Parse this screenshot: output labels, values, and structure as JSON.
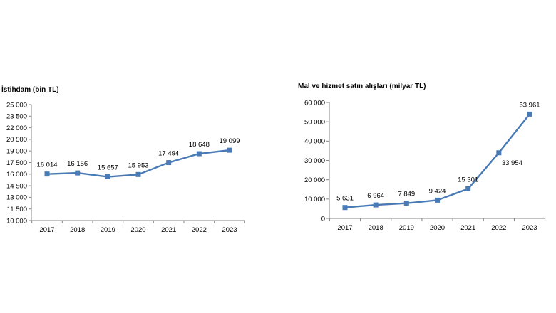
{
  "chart_data": [
    {
      "type": "line",
      "title": "İstihdam (bin TL)",
      "categories": [
        "2017",
        "2018",
        "2019",
        "2020",
        "2021",
        "2022",
        "2023"
      ],
      "values": [
        16014,
        16156,
        15657,
        15953,
        17494,
        18648,
        19099
      ],
      "value_labels": [
        "16 014",
        "16 156",
        "15 657",
        "15 953",
        "17 494",
        "18 648",
        "19 099"
      ],
      "ylim": [
        10000,
        25000
      ],
      "yticks": [
        10000,
        11500,
        13000,
        14500,
        16000,
        17500,
        19000,
        20500,
        22000,
        23500,
        25000
      ],
      "ytick_labels": [
        "10 000",
        "11 500",
        "13 000",
        "14 500",
        "16 000",
        "17 500",
        "19 000",
        "20 500",
        "22 000",
        "23 500",
        "25 000"
      ],
      "grid": false,
      "legend": "none",
      "color": "#4a7ab5"
    },
    {
      "type": "line",
      "title": "Mal ve hizmet satın alışları (milyar TL)",
      "categories": [
        "2017",
        "2018",
        "2019",
        "2020",
        "2021",
        "2022",
        "2023"
      ],
      "values": [
        5631,
        6964,
        7849,
        9424,
        15301,
        33954,
        53961
      ],
      "value_labels": [
        "5 631",
        "6 964",
        "7 849",
        "9 424",
        "15 301",
        "33 954",
        "53 961"
      ],
      "ylim": [
        0,
        60000
      ],
      "yticks": [
        0,
        10000,
        20000,
        30000,
        40000,
        50000,
        60000
      ],
      "ytick_labels": [
        "0",
        "10 000",
        "20 000",
        "30 000",
        "40 000",
        "50 000",
        "60 000"
      ],
      "grid": false,
      "legend": "none",
      "color": "#4a7ab5"
    }
  ]
}
